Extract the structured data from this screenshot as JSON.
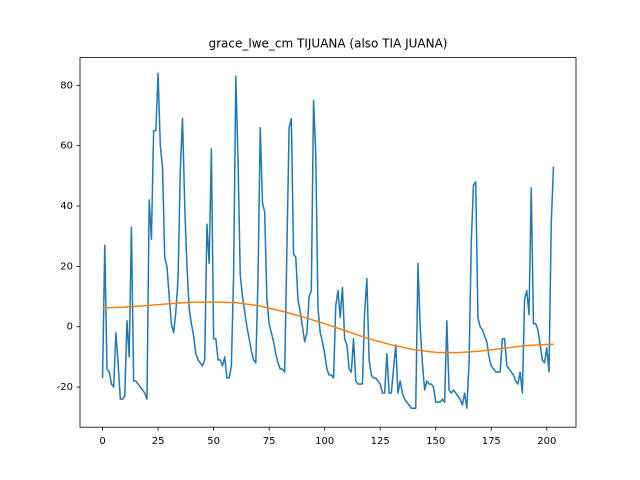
{
  "chart_data": {
    "type": "line",
    "title": "grace_lwe_cm TIJUANA (also TIA JUANA)",
    "xlim": [
      -10.15,
      213.15
    ],
    "ylim": [
      -33.3,
      89.2
    ],
    "xticks": [
      0,
      25,
      50,
      75,
      100,
      125,
      150,
      175,
      200
    ],
    "yticks": [
      -20,
      0,
      20,
      40,
      60,
      80
    ],
    "grid": false,
    "series": [
      {
        "color": "#1f77b4",
        "x": [
          0,
          1,
          2,
          3,
          4,
          5,
          6,
          7,
          8,
          9,
          10,
          11,
          12,
          13,
          14,
          15,
          16,
          17,
          18,
          19,
          20,
          21,
          22,
          23,
          24,
          25,
          26,
          27,
          28,
          29,
          30,
          31,
          32,
          33,
          34,
          35,
          36,
          37,
          38,
          39,
          40,
          41,
          42,
          43,
          44,
          45,
          46,
          47,
          48,
          49,
          50,
          51,
          52,
          53,
          54,
          55,
          56,
          57,
          58,
          59,
          60,
          61,
          62,
          63,
          64,
          65,
          66,
          67,
          68,
          69,
          70,
          71,
          72,
          73,
          74,
          75,
          76,
          77,
          78,
          79,
          80,
          81,
          82,
          83,
          84,
          85,
          86,
          87,
          88,
          89,
          90,
          91,
          92,
          93,
          94,
          95,
          96,
          97,
          98,
          99,
          100,
          101,
          102,
          103,
          104,
          105,
          106,
          107,
          108,
          109,
          110,
          111,
          112,
          113,
          114,
          115,
          116,
          117,
          118,
          119,
          120,
          121,
          122,
          123,
          124,
          125,
          126,
          127,
          128,
          129,
          130,
          131,
          132,
          133,
          134,
          135,
          136,
          137,
          138,
          139,
          140,
          141,
          142,
          143,
          144,
          145,
          146,
          147,
          148,
          149,
          150,
          151,
          152,
          153,
          154,
          155,
          156,
          157,
          158,
          159,
          160,
          161,
          162,
          163,
          164,
          165,
          166,
          167,
          168,
          169,
          170,
          171,
          172,
          173,
          174,
          175,
          176,
          177,
          178,
          179,
          180,
          181,
          182,
          183,
          184,
          185,
          186,
          187,
          188,
          189,
          190,
          191,
          192,
          193,
          194,
          195,
          196,
          197,
          198,
          199,
          200,
          201,
          202,
          203
        ],
        "values": [
          -17,
          27,
          -14,
          -15,
          -19,
          -20,
          -2,
          -12,
          -24,
          -24,
          -23,
          2,
          -10,
          33,
          -18,
          -18,
          -19,
          -20,
          -21,
          -22,
          -24,
          42,
          29,
          65,
          65,
          84,
          60,
          53,
          23,
          20,
          10,
          1,
          -2,
          5,
          16,
          52,
          69,
          40,
          20,
          6,
          1,
          -3,
          -9,
          -11,
          -12,
          -13,
          -11,
          34,
          21,
          59,
          -4,
          -4,
          -11,
          -11,
          -13,
          -10,
          -17,
          -17,
          -13,
          17,
          83,
          55,
          17,
          10,
          5,
          0,
          -4,
          -8,
          -11,
          -12,
          16,
          66,
          41,
          38,
          9,
          1,
          -2,
          -5,
          -9,
          -12,
          -14,
          -14,
          -15,
          26,
          66,
          69,
          24,
          23,
          9,
          5,
          0,
          -5,
          -2,
          10,
          12,
          75,
          57,
          6,
          -2,
          -5,
          -9,
          -14,
          -16,
          -16,
          -17,
          7,
          12,
          3,
          13,
          -4,
          -6,
          -14,
          -15,
          -4,
          -18,
          -19,
          -19,
          -19,
          5,
          16,
          -11,
          -16,
          -17,
          -17,
          -18,
          -19,
          -22,
          -22,
          -9,
          -22,
          -22,
          -14,
          -6,
          -22,
          -18,
          -22,
          -24,
          -25,
          -26,
          -27,
          -27,
          -27,
          21,
          0,
          -12,
          -21,
          -18,
          -19,
          -19,
          -20,
          -25,
          -25,
          -25,
          -24,
          -25,
          2,
          -21,
          -22,
          -21,
          -22,
          -23,
          -24,
          -26,
          -22,
          -27,
          -12,
          28,
          47,
          48,
          3,
          0,
          -1,
          -3,
          -5,
          -10,
          -13,
          -14,
          -15,
          -15,
          -15,
          -4,
          -4,
          -13,
          -14,
          -15,
          -16,
          -18,
          -19,
          -15,
          -22,
          9,
          12,
          4,
          46,
          1,
          1,
          -1,
          -6,
          -11,
          -12,
          -7,
          -15,
          34,
          53
        ]
      },
      {
        "color": "#ff7f0e",
        "x": [
          0,
          10,
          20,
          30,
          40,
          50,
          60,
          70,
          80,
          90,
          100,
          110,
          120,
          130,
          140,
          150,
          160,
          170,
          180,
          190,
          200,
          203
        ],
        "values": [
          6.2,
          6.5,
          7,
          7.6,
          8.1,
          8.2,
          8,
          7,
          5.3,
          3.3,
          1,
          -1.5,
          -4,
          -6,
          -7.6,
          -8.5,
          -8.6,
          -8.1,
          -7.2,
          -6.3,
          -5.9,
          -5.8
        ]
      }
    ]
  }
}
